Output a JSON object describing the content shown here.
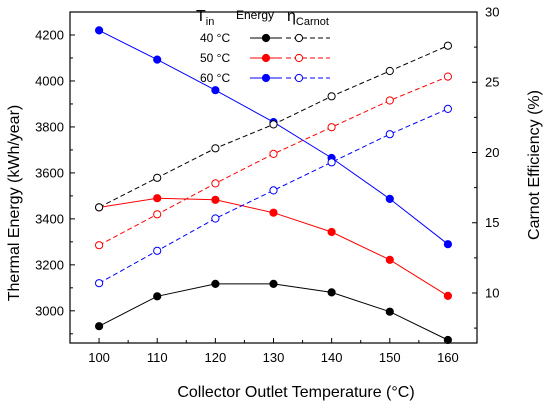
{
  "chart_data": {
    "type": "line",
    "x": [
      100,
      110,
      120,
      130,
      140,
      150,
      160
    ],
    "xlabel": "Collector Outlet Temperature (°C)",
    "ylabel_left": "Thermal Energy (kWh/year)",
    "ylabel_right": "Carnot Efficiency (%)",
    "xlim": [
      95,
      165
    ],
    "ylim_left": [
      2860,
      4300
    ],
    "ylim_right": [
      6.44,
      30
    ],
    "x_ticks": [
      100,
      110,
      120,
      130,
      140,
      150,
      160
    ],
    "y_ticks_left": [
      3000,
      3200,
      3400,
      3600,
      3800,
      4000,
      4200
    ],
    "y_ticks_right": [
      10,
      15,
      20,
      25,
      30
    ],
    "grid": false,
    "legend": {
      "placement": "top-center",
      "header_tin": "T",
      "header_tin_sub": "in",
      "header_energy": "Energy",
      "header_eta": "η",
      "header_eta_sub": "Carnot",
      "entries": [
        "40 °C",
        "50 °C",
        "60 °C"
      ]
    },
    "colors": {
      "40": "#000000",
      "50": "#ff0000",
      "60": "#0000ff"
    },
    "series": [
      {
        "group": "40 °C",
        "kind": "energy",
        "axis": "left",
        "color": "#000000",
        "dashed": false,
        "filled": true,
        "values": [
          2933,
          3063,
          3117,
          3117,
          3080,
          2996,
          2873
        ]
      },
      {
        "group": "50 °C",
        "kind": "energy",
        "axis": "left",
        "color": "#ff0000",
        "dashed": false,
        "filled": true,
        "values": [
          3450,
          3490,
          3483,
          3427,
          3343,
          3222,
          3065
        ]
      },
      {
        "group": "60 °C",
        "kind": "energy",
        "axis": "left",
        "color": "#0000ff",
        "dashed": false,
        "filled": true,
        "values": [
          4220,
          4093,
          3960,
          3821,
          3665,
          3487,
          3290
        ]
      },
      {
        "group": "40 °C",
        "kind": "carnot",
        "axis": "right",
        "color": "#000000",
        "dashed": true,
        "filled": false,
        "values": [
          16.1,
          18.2,
          20.3,
          22.0,
          24.0,
          25.8,
          27.6
        ]
      },
      {
        "group": "50 °C",
        "kind": "carnot",
        "axis": "right",
        "color": "#ff0000",
        "dashed": true,
        "filled": false,
        "values": [
          13.4,
          15.6,
          17.8,
          19.9,
          21.8,
          23.7,
          25.4
        ]
      },
      {
        "group": "60 °C",
        "kind": "carnot",
        "axis": "right",
        "color": "#0000ff",
        "dashed": true,
        "filled": false,
        "values": [
          10.7,
          13.0,
          15.3,
          17.3,
          19.3,
          21.3,
          23.1
        ]
      }
    ]
  }
}
